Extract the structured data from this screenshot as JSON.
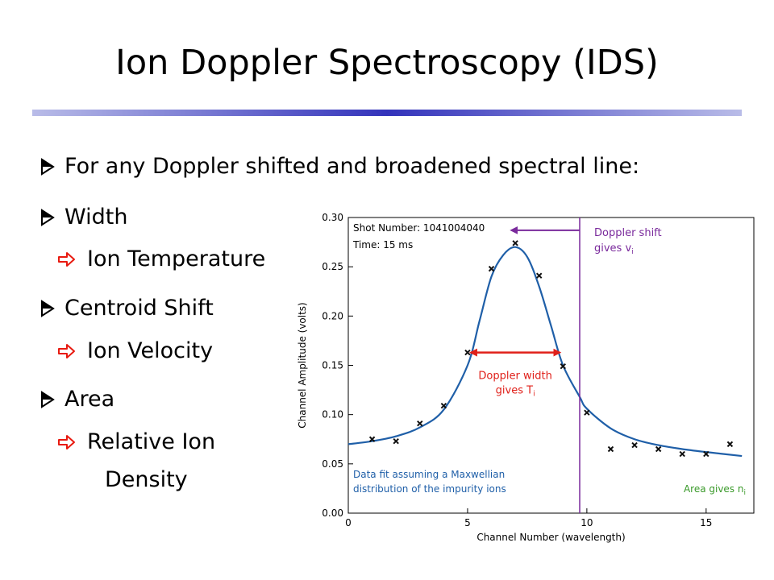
{
  "slide": {
    "title": "Ion Doppler Spectroscopy (IDS)",
    "intro": "For any Doppler shifted and broadened spectral line:",
    "bullets": [
      {
        "label": "Width",
        "sub": "Ion Temperature"
      },
      {
        "label": "Centroid Shift",
        "sub": "Ion Velocity"
      },
      {
        "label": "Area",
        "sub": "Relative Ion",
        "sub2": "Density"
      }
    ]
  },
  "chart_data": {
    "type": "scatter",
    "xlabel": "Channel Number (wavelength)",
    "ylabel": "Channel Amplitude (volts)",
    "xlim": [
      0,
      17
    ],
    "ylim": [
      0,
      0.3
    ],
    "xticks": [
      "0",
      "5",
      "10",
      "15"
    ],
    "yticks": [
      "0.00",
      "0.05",
      "0.10",
      "0.15",
      "0.20",
      "0.25",
      "0.30"
    ],
    "points": {
      "x": [
        1,
        2,
        3,
        4,
        5,
        6,
        7,
        8,
        9,
        10,
        11,
        12,
        13,
        14,
        15,
        16
      ],
      "y": [
        0.075,
        0.073,
        0.091,
        0.109,
        0.163,
        0.248,
        0.274,
        0.241,
        0.149,
        0.102,
        0.065,
        0.069,
        0.065,
        0.06,
        0.06,
        0.07
      ]
    },
    "fit_curve": {
      "x": [
        0,
        1,
        2,
        3,
        4,
        5,
        5.5,
        6,
        6.5,
        7,
        7.5,
        8,
        8.5,
        9,
        9.7,
        10,
        11,
        12,
        13,
        14,
        15,
        16.5
      ],
      "y": [
        0.07,
        0.073,
        0.078,
        0.087,
        0.105,
        0.15,
        0.195,
        0.24,
        0.262,
        0.27,
        0.26,
        0.23,
        0.19,
        0.15,
        0.118,
        0.106,
        0.086,
        0.075,
        0.069,
        0.065,
        0.062,
        0.058
      ]
    },
    "vline_x": 9.7,
    "width_arrow": {
      "x1": 5.0,
      "x2": 9.0,
      "y": 0.163
    },
    "shift_arrow": {
      "from_x": 9.7,
      "to_x": 6.7,
      "y": 0.287
    },
    "annotations": {
      "shot": "Shot Number:  1041004040",
      "time": "Time: 15 ms",
      "doppler_shift_1": "Doppler shift",
      "doppler_shift_2": "gives v",
      "doppler_shift_sub": "i",
      "doppler_width_1": "Doppler width",
      "doppler_width_2": "gives T",
      "doppler_width_sub": "i",
      "fit_1": "Data fit assuming a Maxwellian",
      "fit_2": "distribution of the impurity ions",
      "area": "Area gives n",
      "area_sub": "i"
    },
    "colors": {
      "curve": "#1f5fa8",
      "marker": "#111111",
      "vline": "#7a2a9c",
      "width_arrow": "#e0201a",
      "blue_text": "#1f5fa8",
      "green_text": "#3a9a2a",
      "purple_text": "#7a2a9c"
    },
    "grid": false
  },
  "icons": {
    "bullet": "right-triangle-arrow-icon",
    "sub_bullet": "outline-right-arrow-icon"
  }
}
